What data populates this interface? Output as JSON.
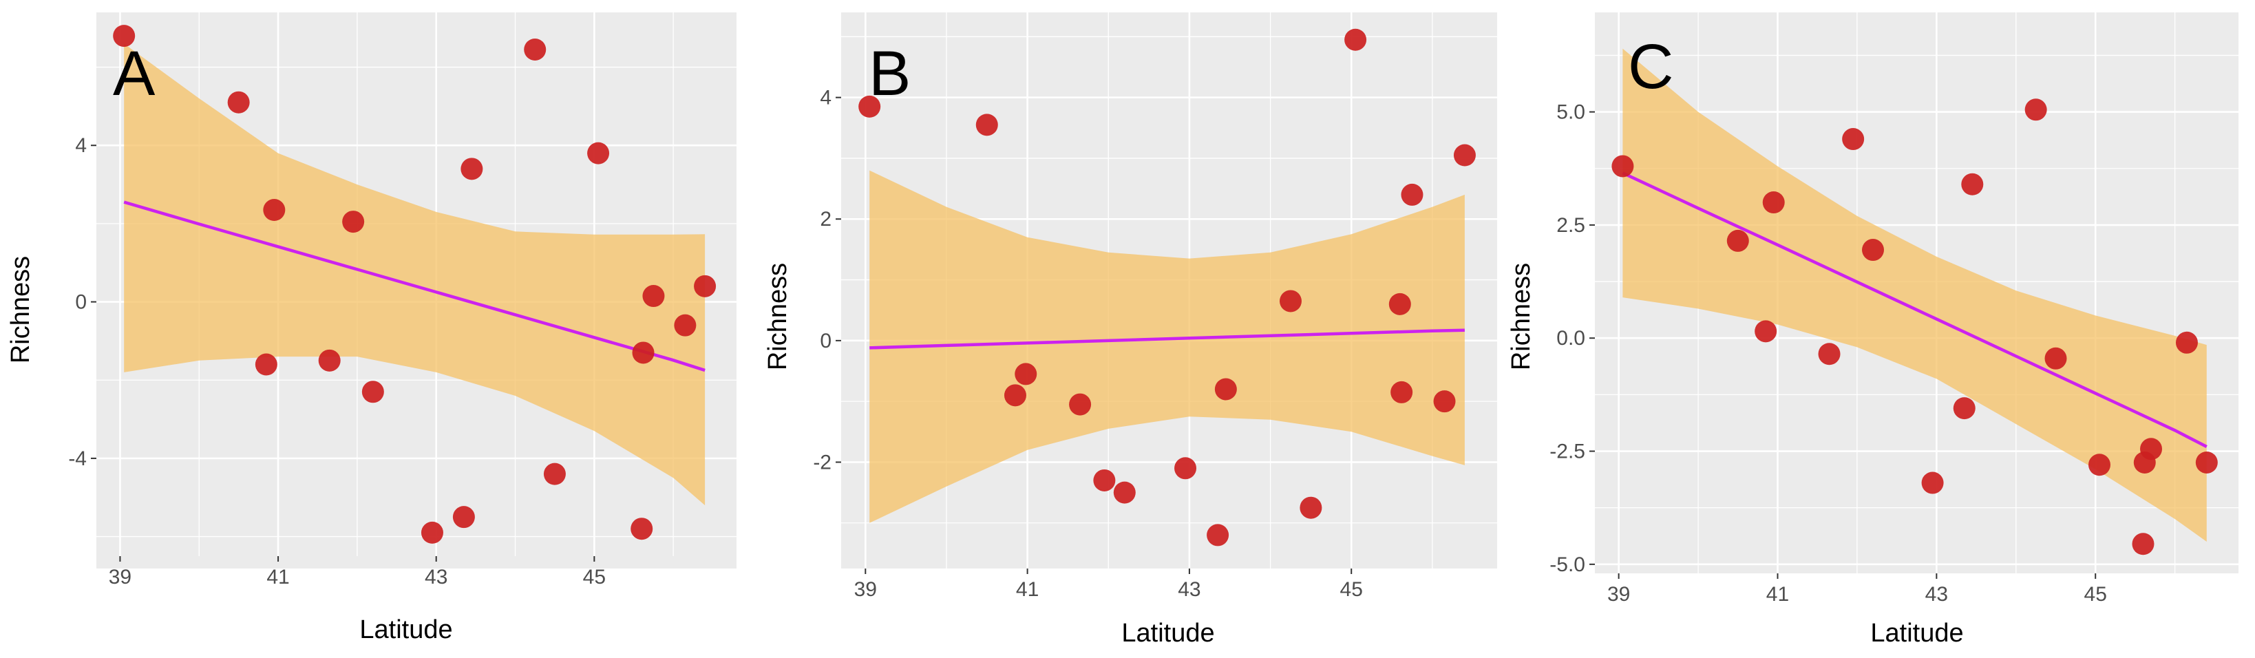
{
  "figure": {
    "background": "#ffffff"
  },
  "chart_data": [
    {
      "type": "scatter",
      "panel_label": "A",
      "xlabel": "Latitude",
      "ylabel": "Richness",
      "xlim": [
        38.7,
        46.8
      ],
      "ylim": [
        -6.5,
        7.4
      ],
      "xticks": [
        39,
        41,
        43,
        45
      ],
      "xtick_labels": [
        "39",
        "41",
        "43",
        "45"
      ],
      "yticks": [
        -4,
        0,
        4
      ],
      "ytick_labels": [
        "-4",
        "0",
        "4"
      ],
      "points": [
        {
          "x": 39.05,
          "y": 6.8
        },
        {
          "x": 40.5,
          "y": 5.1
        },
        {
          "x": 40.95,
          "y": 2.35
        },
        {
          "x": 40.85,
          "y": -1.6
        },
        {
          "x": 41.65,
          "y": -1.5
        },
        {
          "x": 41.95,
          "y": 2.05
        },
        {
          "x": 42.2,
          "y": -2.3
        },
        {
          "x": 42.95,
          "y": -5.9
        },
        {
          "x": 43.35,
          "y": -5.5
        },
        {
          "x": 43.45,
          "y": 3.4
        },
        {
          "x": 44.25,
          "y": 6.45
        },
        {
          "x": 44.5,
          "y": -4.4
        },
        {
          "x": 45.05,
          "y": 3.8
        },
        {
          "x": 45.6,
          "y": -5.8
        },
        {
          "x": 45.62,
          "y": -1.3
        },
        {
          "x": 45.75,
          "y": 0.15
        },
        {
          "x": 46.15,
          "y": -0.6
        },
        {
          "x": 46.4,
          "y": 0.4
        }
      ],
      "fit": {
        "x": [
          39.05,
          40.0,
          41.0,
          42.0,
          43.0,
          44.0,
          45.0,
          46.0,
          46.4
        ],
        "y": [
          2.55,
          1.99,
          1.41,
          0.83,
          0.25,
          -0.33,
          -0.91,
          -1.49,
          -1.75
        ],
        "upper": [
          6.6,
          5.2,
          3.8,
          3.0,
          2.3,
          1.8,
          1.72,
          1.72,
          1.73
        ],
        "lower": [
          -1.8,
          -1.5,
          -1.4,
          -1.4,
          -1.8,
          -2.4,
          -3.3,
          -4.5,
          -5.2
        ]
      },
      "colors": {
        "panel": "#ebebeb",
        "grid": "#ffffff",
        "point": "#cc1f1f",
        "ribbon": "#f5bf60",
        "line": "#cc22ee"
      }
    },
    {
      "type": "scatter",
      "panel_label": "B",
      "xlabel": "Latitude",
      "ylabel": "Richness",
      "xlim": [
        38.7,
        46.8
      ],
      "ylim": [
        -3.75,
        5.4
      ],
      "xticks": [
        39,
        41,
        43,
        45
      ],
      "xtick_labels": [
        "39",
        "41",
        "43",
        "45"
      ],
      "yticks": [
        -2,
        0,
        2,
        4
      ],
      "ytick_labels": [
        "-2",
        "0",
        "2",
        "4"
      ],
      "points": [
        {
          "x": 39.05,
          "y": 3.85
        },
        {
          "x": 40.5,
          "y": 3.55
        },
        {
          "x": 40.85,
          "y": -0.9
        },
        {
          "x": 40.98,
          "y": -0.55
        },
        {
          "x": 41.65,
          "y": -1.05
        },
        {
          "x": 41.95,
          "y": -2.3
        },
        {
          "x": 42.2,
          "y": -2.5
        },
        {
          "x": 42.95,
          "y": -2.1
        },
        {
          "x": 43.35,
          "y": -3.2
        },
        {
          "x": 43.45,
          "y": -0.8
        },
        {
          "x": 44.25,
          "y": 0.65
        },
        {
          "x": 44.5,
          "y": -2.75
        },
        {
          "x": 45.05,
          "y": 4.95
        },
        {
          "x": 45.6,
          "y": 0.6
        },
        {
          "x": 45.62,
          "y": -0.85
        },
        {
          "x": 45.75,
          "y": 2.4
        },
        {
          "x": 46.15,
          "y": -1.0
        },
        {
          "x": 46.4,
          "y": 3.05
        }
      ],
      "fit": {
        "x": [
          39.05,
          40.0,
          41.0,
          42.0,
          43.0,
          44.0,
          45.0,
          46.0,
          46.4
        ],
        "y": [
          -0.12,
          -0.08,
          -0.04,
          0.0,
          0.04,
          0.08,
          0.12,
          0.16,
          0.17
        ],
        "upper": [
          2.8,
          2.2,
          1.7,
          1.45,
          1.35,
          1.45,
          1.75,
          2.2,
          2.4
        ],
        "lower": [
          -3.0,
          -2.4,
          -1.8,
          -1.45,
          -1.25,
          -1.3,
          -1.5,
          -1.9,
          -2.05
        ]
      },
      "colors": {
        "panel": "#ebebeb",
        "grid": "#ffffff",
        "point": "#cc1f1f",
        "ribbon": "#f5bf60",
        "line": "#cc22ee"
      }
    },
    {
      "type": "scatter",
      "panel_label": "C",
      "xlabel": "Latitude",
      "ylabel": "Richness",
      "xlim": [
        38.7,
        46.8
      ],
      "ylim": [
        -5.2,
        7.2
      ],
      "xticks": [
        39,
        41,
        43,
        45
      ],
      "xtick_labels": [
        "39",
        "41",
        "43",
        "45"
      ],
      "yticks": [
        -5.0,
        -2.5,
        0.0,
        2.5,
        5.0
      ],
      "ytick_labels": [
        "-5.0",
        "-2.5",
        "0.0",
        "2.5",
        "5.0"
      ],
      "points": [
        {
          "x": 39.05,
          "y": 3.8
        },
        {
          "x": 40.5,
          "y": 2.15
        },
        {
          "x": 40.95,
          "y": 3.0
        },
        {
          "x": 40.85,
          "y": 0.15
        },
        {
          "x": 41.65,
          "y": -0.35
        },
        {
          "x": 41.95,
          "y": 4.4
        },
        {
          "x": 42.2,
          "y": 1.95
        },
        {
          "x": 42.95,
          "y": -3.2
        },
        {
          "x": 43.35,
          "y": -1.55
        },
        {
          "x": 43.45,
          "y": 3.4
        },
        {
          "x": 44.25,
          "y": 5.05
        },
        {
          "x": 44.5,
          "y": -0.45
        },
        {
          "x": 45.05,
          "y": -2.8
        },
        {
          "x": 45.6,
          "y": -4.55
        },
        {
          "x": 45.62,
          "y": -2.75
        },
        {
          "x": 45.7,
          "y": -2.45
        },
        {
          "x": 46.15,
          "y": -0.1
        },
        {
          "x": 46.4,
          "y": -2.75
        }
      ],
      "fit": {
        "x": [
          39.05,
          40.0,
          41.0,
          42.0,
          43.0,
          44.0,
          45.0,
          46.0,
          46.4
        ],
        "y": [
          3.65,
          2.87,
          2.06,
          1.24,
          0.42,
          -0.4,
          -1.22,
          -2.04,
          -2.4
        ],
        "upper": [
          6.4,
          5.0,
          3.8,
          2.7,
          1.8,
          1.05,
          0.5,
          0.05,
          -0.15
        ],
        "lower": [
          0.9,
          0.65,
          0.3,
          -0.2,
          -0.9,
          -1.9,
          -2.9,
          -4.0,
          -4.5
        ]
      },
      "colors": {
        "panel": "#ebebeb",
        "grid": "#ffffff",
        "point": "#cc1f1f",
        "ribbon": "#f5bf60",
        "line": "#cc22ee"
      }
    }
  ]
}
